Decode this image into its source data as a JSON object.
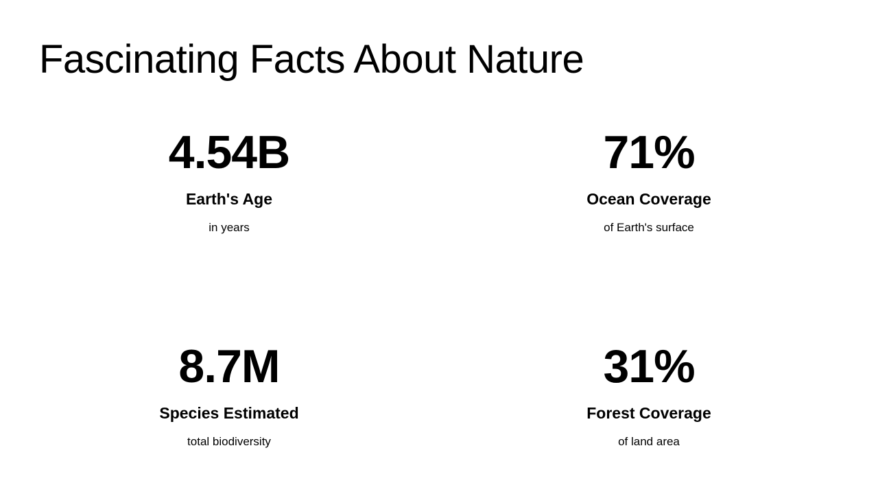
{
  "slide": {
    "title": "Fascinating Facts About Nature",
    "stats": [
      {
        "value": "4.54B",
        "label": "Earth's Age",
        "description": "in years"
      },
      {
        "value": "71%",
        "label": "Ocean Coverage",
        "description": "of Earth's surface"
      },
      {
        "value": "8.7M",
        "label": "Species Estimated",
        "description": "total biodiversity"
      },
      {
        "value": "31%",
        "label": "Forest Coverage",
        "description": "of land area"
      }
    ],
    "colors": {
      "background": "#ffffff",
      "text": "#000000"
    }
  }
}
